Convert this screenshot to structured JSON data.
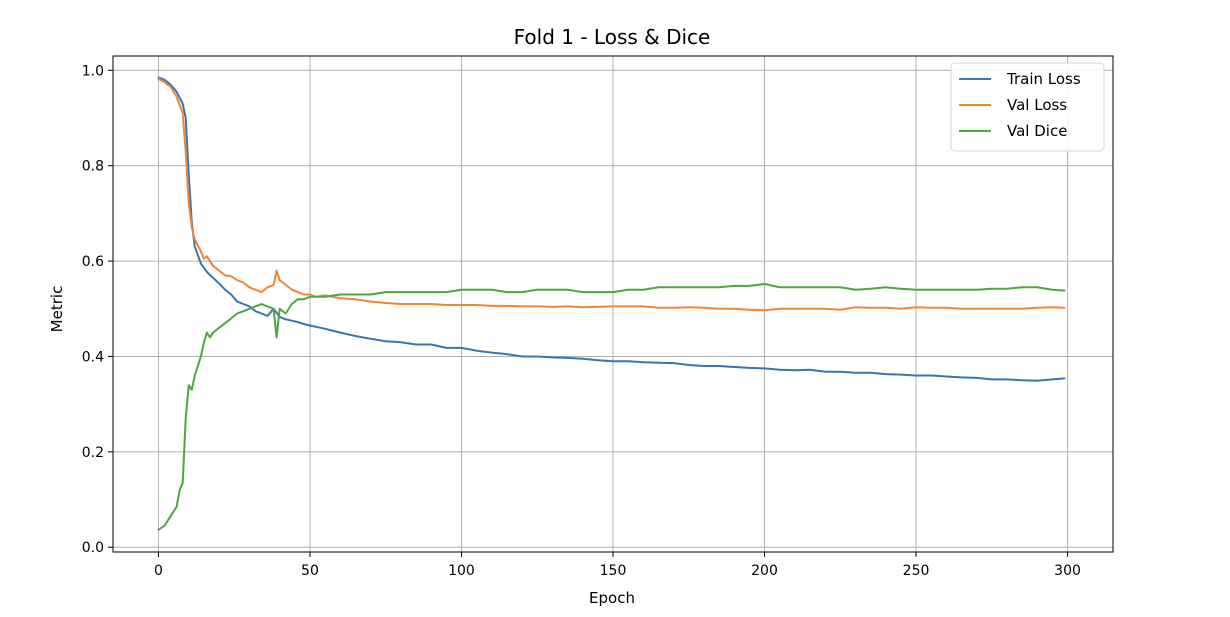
{
  "chart_data": {
    "type": "line",
    "title": "Fold 1 - Loss & Dice",
    "xlabel": "Epoch",
    "ylabel": "Metric",
    "xlim": [
      -15,
      315
    ],
    "ylim": [
      -0.01,
      1.03
    ],
    "xticks": [
      0,
      50,
      100,
      150,
      200,
      250,
      300
    ],
    "yticks": [
      0.0,
      0.2,
      0.4,
      0.6,
      0.8,
      1.0
    ],
    "xtick_labels": [
      "0",
      "50",
      "100",
      "150",
      "200",
      "250",
      "300"
    ],
    "ytick_labels": [
      "0.0",
      "0.2",
      "0.4",
      "0.6",
      "0.8",
      "1.0"
    ],
    "grid": true,
    "legend": "top-right",
    "series": [
      {
        "name": "Train Loss",
        "color": "#3a75b0",
        "x": [
          0,
          2,
          4,
          6,
          8,
          9,
          10,
          11,
          12,
          14,
          16,
          18,
          20,
          22,
          24,
          26,
          28,
          30,
          32,
          34,
          36,
          38,
          40,
          42,
          44,
          46,
          48,
          50,
          55,
          60,
          65,
          70,
          75,
          80,
          85,
          90,
          95,
          100,
          105,
          110,
          115,
          120,
          125,
          130,
          135,
          140,
          145,
          150,
          155,
          160,
          165,
          170,
          175,
          180,
          185,
          190,
          195,
          200,
          205,
          210,
          215,
          220,
          225,
          230,
          235,
          240,
          245,
          250,
          255,
          260,
          265,
          270,
          275,
          280,
          285,
          290,
          295,
          299
        ],
        "y": [
          0.985,
          0.98,
          0.97,
          0.955,
          0.93,
          0.9,
          0.78,
          0.68,
          0.63,
          0.595,
          0.577,
          0.565,
          0.553,
          0.54,
          0.53,
          0.515,
          0.51,
          0.505,
          0.495,
          0.49,
          0.485,
          0.5,
          0.483,
          0.478,
          0.475,
          0.472,
          0.468,
          0.465,
          0.458,
          0.45,
          0.443,
          0.437,
          0.432,
          0.43,
          0.425,
          0.425,
          0.418,
          0.418,
          0.412,
          0.408,
          0.405,
          0.4,
          0.4,
          0.398,
          0.397,
          0.395,
          0.392,
          0.39,
          0.39,
          0.388,
          0.387,
          0.386,
          0.382,
          0.38,
          0.38,
          0.378,
          0.376,
          0.375,
          0.372,
          0.371,
          0.372,
          0.368,
          0.368,
          0.366,
          0.366,
          0.363,
          0.362,
          0.36,
          0.36,
          0.358,
          0.356,
          0.355,
          0.352,
          0.352,
          0.35,
          0.349,
          0.352,
          0.354
        ]
      },
      {
        "name": "Val Loss",
        "color": "#ef8636",
        "x": [
          0,
          2,
          4,
          6,
          8,
          9,
          10,
          11,
          12,
          14,
          15,
          16,
          18,
          20,
          22,
          24,
          26,
          28,
          30,
          32,
          34,
          36,
          38,
          39,
          40,
          42,
          44,
          46,
          48,
          50,
          52,
          55,
          60,
          65,
          70,
          75,
          80,
          85,
          90,
          95,
          100,
          105,
          110,
          115,
          120,
          125,
          130,
          135,
          140,
          145,
          150,
          155,
          160,
          165,
          170,
          175,
          180,
          185,
          190,
          195,
          200,
          205,
          210,
          215,
          220,
          225,
          230,
          235,
          240,
          245,
          250,
          255,
          260,
          265,
          270,
          275,
          280,
          285,
          290,
          295,
          299
        ],
        "y": [
          0.982,
          0.975,
          0.965,
          0.945,
          0.91,
          0.83,
          0.72,
          0.67,
          0.645,
          0.62,
          0.605,
          0.61,
          0.59,
          0.58,
          0.57,
          0.568,
          0.56,
          0.555,
          0.545,
          0.54,
          0.535,
          0.545,
          0.55,
          0.58,
          0.56,
          0.55,
          0.54,
          0.535,
          0.53,
          0.53,
          0.525,
          0.528,
          0.522,
          0.52,
          0.515,
          0.512,
          0.51,
          0.51,
          0.51,
          0.508,
          0.508,
          0.508,
          0.506,
          0.506,
          0.505,
          0.505,
          0.504,
          0.505,
          0.503,
          0.504,
          0.505,
          0.505,
          0.505,
          0.502,
          0.502,
          0.503,
          0.502,
          0.5,
          0.5,
          0.498,
          0.497,
          0.5,
          0.5,
          0.5,
          0.5,
          0.498,
          0.503,
          0.502,
          0.502,
          0.5,
          0.503,
          0.502,
          0.502,
          0.5,
          0.5,
          0.5,
          0.5,
          0.5,
          0.502,
          0.503,
          0.502
        ]
      },
      {
        "name": "Val Dice",
        "color": "#50a541",
        "x": [
          0,
          2,
          4,
          6,
          7,
          8,
          9,
          10,
          11,
          12,
          13,
          14,
          15,
          16,
          17,
          18,
          20,
          22,
          24,
          26,
          28,
          30,
          32,
          34,
          36,
          38,
          39,
          40,
          42,
          44,
          46,
          48,
          50,
          55,
          60,
          65,
          70,
          75,
          80,
          85,
          90,
          95,
          100,
          105,
          110,
          115,
          120,
          125,
          130,
          135,
          140,
          145,
          150,
          155,
          160,
          165,
          170,
          175,
          180,
          185,
          190,
          195,
          200,
          205,
          210,
          215,
          220,
          225,
          230,
          235,
          240,
          245,
          250,
          255,
          260,
          265,
          270,
          275,
          280,
          285,
          290,
          295,
          299
        ],
        "y": [
          0.037,
          0.045,
          0.065,
          0.085,
          0.12,
          0.135,
          0.27,
          0.34,
          0.33,
          0.36,
          0.38,
          0.4,
          0.43,
          0.45,
          0.44,
          0.45,
          0.46,
          0.47,
          0.48,
          0.49,
          0.495,
          0.5,
          0.505,
          0.51,
          0.505,
          0.5,
          0.44,
          0.5,
          0.49,
          0.51,
          0.52,
          0.52,
          0.525,
          0.525,
          0.53,
          0.53,
          0.53,
          0.535,
          0.535,
          0.535,
          0.535,
          0.535,
          0.54,
          0.54,
          0.54,
          0.535,
          0.535,
          0.54,
          0.54,
          0.54,
          0.535,
          0.535,
          0.535,
          0.54,
          0.54,
          0.545,
          0.545,
          0.545,
          0.545,
          0.545,
          0.548,
          0.548,
          0.552,
          0.545,
          0.545,
          0.545,
          0.545,
          0.545,
          0.54,
          0.542,
          0.545,
          0.542,
          0.54,
          0.54,
          0.54,
          0.54,
          0.54,
          0.542,
          0.542,
          0.545,
          0.545,
          0.54,
          0.538
        ]
      }
    ]
  }
}
